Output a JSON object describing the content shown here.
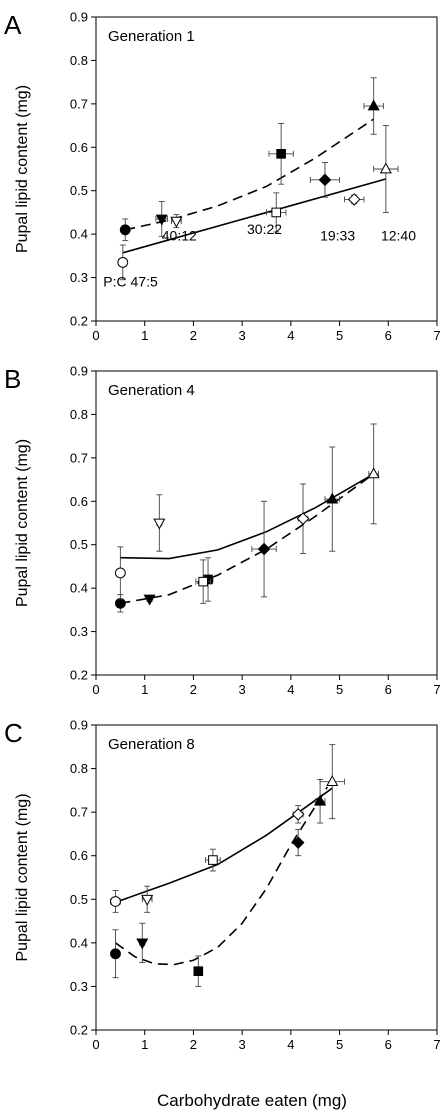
{
  "figure": {
    "x_axis_label": "Carbohydrate eaten (mg)"
  },
  "chart_data": [
    {
      "type": "scatter",
      "panel_letter": "A",
      "title": "Generation 1",
      "ylabel": "Pupal lipid content (mg)",
      "xlim": [
        0,
        7
      ],
      "ylim": [
        0.2,
        0.9
      ],
      "x_ticks": [
        "0",
        "1",
        "2",
        "3",
        "4",
        "5",
        "6",
        "7"
      ],
      "y_ticks": [
        "0.2",
        "0.3",
        "0.4",
        "0.5",
        "0.6",
        "0.7",
        "0.8",
        "0.9"
      ],
      "annotations": [
        {
          "text": "40:12",
          "x": 1.35,
          "y": 0.385
        },
        {
          "text": "30:22",
          "x": 3.1,
          "y": 0.4
        },
        {
          "text": "19:33",
          "x": 4.6,
          "y": 0.385
        },
        {
          "text": "12:40",
          "x": 5.85,
          "y": 0.385
        },
        {
          "text": "P:C 47:5",
          "x": 0.15,
          "y": 0.28
        }
      ],
      "points": [
        {
          "x": 0.6,
          "y": 0.41,
          "xerr": 0.05,
          "yerr": 0.025,
          "marker": "circle",
          "filled": true
        },
        {
          "x": 1.35,
          "y": 0.435,
          "xerr": 0.12,
          "yerr": 0.04,
          "marker": "triangle-down",
          "filled": true
        },
        {
          "x": 3.8,
          "y": 0.585,
          "xerr": 0.25,
          "yerr": 0.07,
          "marker": "square",
          "filled": true
        },
        {
          "x": 4.7,
          "y": 0.525,
          "xerr": 0.3,
          "yerr": 0.04,
          "marker": "diamond",
          "filled": true
        },
        {
          "x": 5.7,
          "y": 0.695,
          "xerr": 0.2,
          "yerr": 0.065,
          "marker": "triangle-up",
          "filled": true
        },
        {
          "x": 0.55,
          "y": 0.335,
          "xerr": 0.05,
          "yerr": 0.04,
          "marker": "circle",
          "filled": false
        },
        {
          "x": 1.65,
          "y": 0.43,
          "xerr": 0.1,
          "yerr": 0.015,
          "marker": "triangle-down",
          "filled": false
        },
        {
          "x": 3.7,
          "y": 0.45,
          "xerr": 0.2,
          "yerr": 0.045,
          "marker": "square",
          "filled": false
        },
        {
          "x": 5.3,
          "y": 0.48,
          "xerr": 0.2,
          "yerr": 0.01,
          "marker": "diamond",
          "filled": false
        },
        {
          "x": 5.95,
          "y": 0.55,
          "xerr": 0.25,
          "yerr": 0.1,
          "marker": "triangle-up",
          "filled": false
        }
      ],
      "lines": [
        {
          "style": "dashed",
          "x": [
            0.6,
            1.5,
            2.5,
            3.5,
            4.5,
            5.7
          ],
          "y": [
            0.41,
            0.432,
            0.465,
            0.51,
            0.575,
            0.665
          ]
        },
        {
          "style": "solid",
          "x": [
            0.55,
            5.95
          ],
          "y": [
            0.357,
            0.527
          ]
        }
      ]
    },
    {
      "type": "scatter",
      "panel_letter": "B",
      "title": "Generation 4",
      "ylabel": "Pupal lipid content (mg)",
      "xlim": [
        0,
        7
      ],
      "ylim": [
        0.2,
        0.9
      ],
      "x_ticks": [
        "0",
        "1",
        "2",
        "3",
        "4",
        "5",
        "6",
        "7"
      ],
      "y_ticks": [
        "0.2",
        "0.3",
        "0.4",
        "0.5",
        "0.6",
        "0.7",
        "0.8",
        "0.9"
      ],
      "annotations": [],
      "points": [
        {
          "x": 0.5,
          "y": 0.365,
          "xerr": 0.05,
          "yerr": 0.02,
          "marker": "circle",
          "filled": true
        },
        {
          "x": 1.1,
          "y": 0.375,
          "xerr": 0.05,
          "yerr": 0.005,
          "marker": "triangle-down",
          "filled": true
        },
        {
          "x": 2.3,
          "y": 0.42,
          "xerr": 0.1,
          "yerr": 0.05,
          "marker": "square",
          "filled": true
        },
        {
          "x": 3.45,
          "y": 0.49,
          "xerr": 0.25,
          "yerr": 0.11,
          "marker": "diamond",
          "filled": true
        },
        {
          "x": 4.85,
          "y": 0.605,
          "xerr": 0.15,
          "yerr": 0.12,
          "marker": "triangle-up",
          "filled": true
        },
        {
          "x": 0.5,
          "y": 0.435,
          "xerr": 0.05,
          "yerr": 0.06,
          "marker": "circle",
          "filled": false
        },
        {
          "x": 1.3,
          "y": 0.55,
          "xerr": 0.05,
          "yerr": 0.065,
          "marker": "triangle-down",
          "filled": false
        },
        {
          "x": 2.2,
          "y": 0.415,
          "xerr": 0.15,
          "yerr": 0.05,
          "marker": "square",
          "filled": false
        },
        {
          "x": 4.25,
          "y": 0.56,
          "xerr": 0.1,
          "yerr": 0.08,
          "marker": "diamond",
          "filled": false
        },
        {
          "x": 5.7,
          "y": 0.663,
          "xerr": 0.1,
          "yerr": 0.115,
          "marker": "triangle-up",
          "filled": false
        }
      ],
      "lines": [
        {
          "style": "dashed",
          "x": [
            0.5,
            1.5,
            2.5,
            3.5,
            4.5,
            5.7
          ],
          "y": [
            0.365,
            0.385,
            0.43,
            0.49,
            0.565,
            0.663
          ]
        },
        {
          "style": "solid",
          "x": [
            0.5,
            1.5,
            2.5,
            3.5,
            4.5,
            5.7
          ],
          "y": [
            0.47,
            0.468,
            0.488,
            0.53,
            0.585,
            0.663
          ]
        }
      ]
    },
    {
      "type": "scatter",
      "panel_letter": "C",
      "title": "Generation 8",
      "ylabel": "Pupal lipid content (mg)",
      "xlim": [
        0,
        7
      ],
      "ylim": [
        0.2,
        0.9
      ],
      "x_ticks": [
        "0",
        "1",
        "2",
        "3",
        "4",
        "5",
        "6",
        "7"
      ],
      "y_ticks": [
        "0.2",
        "0.3",
        "0.4",
        "0.5",
        "0.6",
        "0.7",
        "0.8",
        "0.9"
      ],
      "annotations": [],
      "points": [
        {
          "x": 0.4,
          "y": 0.375,
          "xerr": 0.05,
          "yerr": 0.055,
          "marker": "circle",
          "filled": true
        },
        {
          "x": 0.95,
          "y": 0.4,
          "xerr": 0.05,
          "yerr": 0.045,
          "marker": "triangle-down",
          "filled": true
        },
        {
          "x": 2.1,
          "y": 0.335,
          "xerr": 0.05,
          "yerr": 0.035,
          "marker": "square",
          "filled": true
        },
        {
          "x": 4.15,
          "y": 0.63,
          "xerr": 0.05,
          "yerr": 0.03,
          "marker": "diamond",
          "filled": true
        },
        {
          "x": 4.6,
          "y": 0.725,
          "xerr": 0.1,
          "yerr": 0.05,
          "marker": "triangle-up",
          "filled": true
        },
        {
          "x": 0.4,
          "y": 0.495,
          "xerr": 0.1,
          "yerr": 0.025,
          "marker": "circle",
          "filled": false
        },
        {
          "x": 1.05,
          "y": 0.5,
          "xerr": 0.1,
          "yerr": 0.03,
          "marker": "triangle-down",
          "filled": false
        },
        {
          "x": 2.4,
          "y": 0.59,
          "xerr": 0.15,
          "yerr": 0.025,
          "marker": "square",
          "filled": false
        },
        {
          "x": 4.15,
          "y": 0.695,
          "xerr": 0.1,
          "yerr": 0.02,
          "marker": "diamond",
          "filled": false
        },
        {
          "x": 4.85,
          "y": 0.77,
          "xerr": 0.25,
          "yerr": 0.085,
          "marker": "triangle-up",
          "filled": false
        }
      ],
      "lines": [
        {
          "style": "dashed",
          "x": [
            0.4,
            0.8,
            1.2,
            1.6,
            2.0,
            2.5,
            3.0,
            3.5,
            4.0,
            4.4,
            4.75
          ],
          "y": [
            0.4,
            0.368,
            0.352,
            0.35,
            0.36,
            0.39,
            0.445,
            0.525,
            0.625,
            0.695,
            0.758
          ]
        },
        {
          "style": "solid",
          "x": [
            0.4,
            1.5,
            2.5,
            3.5,
            4.85
          ],
          "y": [
            0.493,
            0.537,
            0.58,
            0.647,
            0.755
          ]
        }
      ]
    }
  ]
}
